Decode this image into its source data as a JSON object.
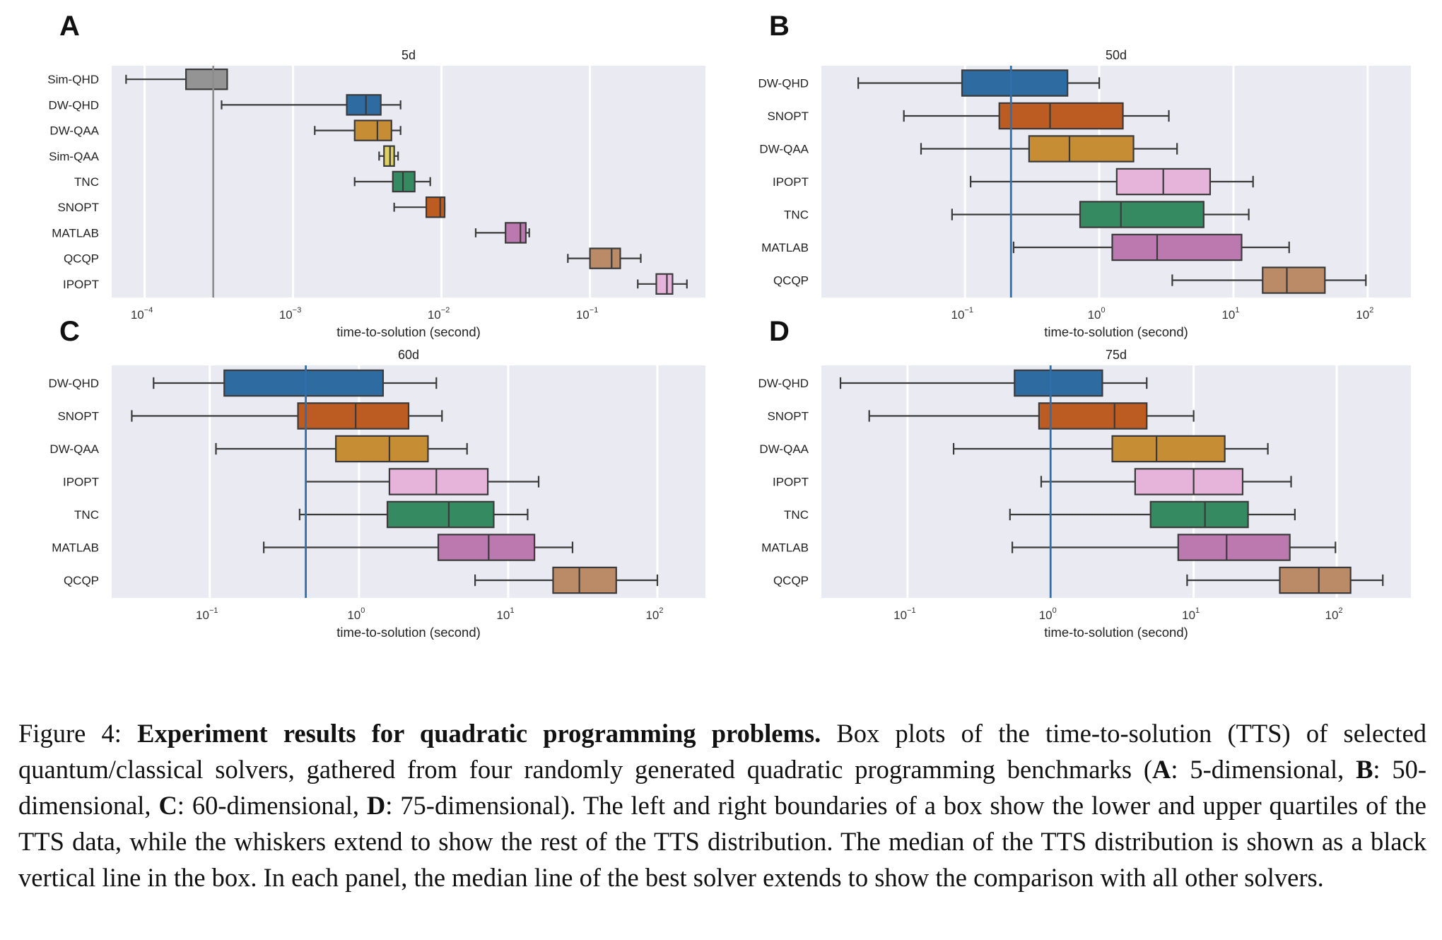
{
  "figure": {
    "caption_label": "Figure 4:",
    "caption_title": "Experiment results for quadratic programming problems.",
    "caption_parts": [
      " Box plots of the time-to-solution (TTS) of selected quantum/classical solvers, gathered from four randomly generated quadratic programming benchmarks (",
      "A",
      ": 5-dimensional, ",
      "B",
      ": 50-dimensional, ",
      "C",
      ": 60-dimensional, ",
      "D",
      ": 75-dimensional). The left and right boundaries of a box show the lower and upper quartiles of the TTS data, while the whiskers extend to show the rest of the TTS distribution. The median of the TTS distribution is shown as a black vertical line in the box. In each panel, the median line of the best solver extends to show the comparison with all other solvers."
    ]
  },
  "colors": {
    "Sim-QHD": "#949494",
    "DW-QHD": "#2d6ba1",
    "DW-QAA": "#c78d34",
    "Sim-QAA": "#dcd162",
    "TNC": "#358a62",
    "SNOPT": "#bd5c22",
    "MATLAB": "#bb79b0",
    "QCQP": "#bb8b67",
    "IPOPT": "#e6b4da",
    "background": "#eaeaf2",
    "best_line_A": "#8c8c8c",
    "best_line": "#2f6fab"
  },
  "chart_data": [
    {
      "type": "box",
      "panel": "A",
      "title": "5d",
      "xlabel": "time-to-solution (second)",
      "xscale": "log",
      "xlim": [
        6e-05,
        0.6
      ],
      "xticks": [
        {
          "value": 0.0001,
          "base": "10",
          "exp": "−4"
        },
        {
          "value": 0.001,
          "base": "10",
          "exp": "−3"
        },
        {
          "value": 0.01,
          "base": "10",
          "exp": "−2"
        },
        {
          "value": 0.1,
          "base": "10",
          "exp": "−1"
        }
      ],
      "best_median": 0.00029,
      "series": [
        {
          "name": "Sim-QHD",
          "whislo": 7.5e-05,
          "q1": 0.00019,
          "med": 0.00029,
          "q3": 0.00036,
          "whishi": 0.00036
        },
        {
          "name": "DW-QHD",
          "whislo": 0.00033,
          "q1": 0.0023,
          "med": 0.0031,
          "q3": 0.0039,
          "whishi": 0.0053
        },
        {
          "name": "DW-QAA",
          "whislo": 0.0014,
          "q1": 0.0026,
          "med": 0.0037,
          "q3": 0.0046,
          "whishi": 0.0053
        },
        {
          "name": "Sim-QAA",
          "whislo": 0.0038,
          "q1": 0.0041,
          "med": 0.0045,
          "q3": 0.0048,
          "whishi": 0.0051
        },
        {
          "name": "TNC",
          "whislo": 0.0026,
          "q1": 0.0047,
          "med": 0.0055,
          "q3": 0.0066,
          "whishi": 0.0084
        },
        {
          "name": "SNOPT",
          "whislo": 0.0048,
          "q1": 0.0079,
          "med": 0.0098,
          "q3": 0.0105,
          "whishi": 0.0105
        },
        {
          "name": "MATLAB",
          "whislo": 0.017,
          "q1": 0.027,
          "med": 0.034,
          "q3": 0.037,
          "whishi": 0.039
        },
        {
          "name": "QCQP",
          "whislo": 0.071,
          "q1": 0.1,
          "med": 0.14,
          "q3": 0.16,
          "whishi": 0.22
        },
        {
          "name": "IPOPT",
          "whislo": 0.21,
          "q1": 0.28,
          "med": 0.33,
          "q3": 0.36,
          "whishi": 0.45
        }
      ]
    },
    {
      "type": "box",
      "panel": "B",
      "title": "50d",
      "xlabel": "time-to-solution (second)",
      "xscale": "log",
      "xlim": [
        0.0085,
        210
      ],
      "xticks": [
        {
          "value": 0.1,
          "base": "10",
          "exp": "−1"
        },
        {
          "value": 1,
          "base": "10",
          "exp": "0"
        },
        {
          "value": 10,
          "base": "10",
          "exp": "1"
        },
        {
          "value": 100,
          "base": "10",
          "exp": "2"
        }
      ],
      "best_median": 0.22,
      "series": [
        {
          "name": "DW-QHD",
          "whislo": 0.016,
          "q1": 0.095,
          "med": 0.22,
          "q3": 0.58,
          "whishi": 1.0
        },
        {
          "name": "SNOPT",
          "whislo": 0.035,
          "q1": 0.18,
          "med": 0.43,
          "q3": 1.5,
          "whishi": 3.3
        },
        {
          "name": "DW-QAA",
          "whislo": 0.047,
          "q1": 0.3,
          "med": 0.6,
          "q3": 1.8,
          "whishi": 3.8
        },
        {
          "name": "IPOPT",
          "whislo": 0.11,
          "q1": 1.35,
          "med": 3.0,
          "q3": 6.7,
          "whishi": 14
        },
        {
          "name": "TNC",
          "whislo": 0.08,
          "q1": 0.72,
          "med": 1.45,
          "q3": 6.0,
          "whishi": 13
        },
        {
          "name": "MATLAB",
          "whislo": 0.23,
          "q1": 1.25,
          "med": 2.7,
          "q3": 11.5,
          "whishi": 26
        },
        {
          "name": "QCQP",
          "whislo": 3.5,
          "q1": 16.5,
          "med": 25,
          "q3": 48,
          "whishi": 97
        }
      ]
    },
    {
      "type": "box",
      "panel": "C",
      "title": "60d",
      "xlabel": "time-to-solution (second)",
      "xscale": "log",
      "xlim": [
        0.022,
        210
      ],
      "xticks": [
        {
          "value": 0.1,
          "base": "10",
          "exp": "−1"
        },
        {
          "value": 1,
          "base": "10",
          "exp": "0"
        },
        {
          "value": 10,
          "base": "10",
          "exp": "1"
        },
        {
          "value": 100,
          "base": "10",
          "exp": "2"
        }
      ],
      "best_median": 0.44,
      "series": [
        {
          "name": "DW-QHD",
          "whislo": 0.042,
          "q1": 0.125,
          "med": 0.44,
          "q3": 1.45,
          "whishi": 3.3
        },
        {
          "name": "SNOPT",
          "whislo": 0.03,
          "q1": 0.39,
          "med": 0.95,
          "q3": 2.15,
          "whishi": 3.6
        },
        {
          "name": "DW-QAA",
          "whislo": 0.11,
          "q1": 0.7,
          "med": 1.6,
          "q3": 2.9,
          "whishi": 5.3
        },
        {
          "name": "IPOPT",
          "whislo": 0.44,
          "q1": 1.6,
          "med": 3.3,
          "q3": 7.3,
          "whishi": 16
        },
        {
          "name": "TNC",
          "whislo": 0.4,
          "q1": 1.55,
          "med": 4.0,
          "q3": 8.0,
          "whishi": 13.5
        },
        {
          "name": "MATLAB",
          "whislo": 0.23,
          "q1": 3.4,
          "med": 7.4,
          "q3": 15,
          "whishi": 27
        },
        {
          "name": "QCQP",
          "whislo": 6.0,
          "q1": 20,
          "med": 30,
          "q3": 53,
          "whishi": 100
        }
      ]
    },
    {
      "type": "box",
      "panel": "D",
      "title": "75d",
      "xlabel": "time-to-solution (second)",
      "xscale": "log",
      "xlim": [
        0.025,
        330
      ],
      "xticks": [
        {
          "value": 0.1,
          "base": "10",
          "exp": "−1"
        },
        {
          "value": 1,
          "base": "10",
          "exp": "0"
        },
        {
          "value": 10,
          "base": "10",
          "exp": "1"
        },
        {
          "value": 100,
          "base": "10",
          "exp": "2"
        }
      ],
      "best_median": 1.0,
      "series": [
        {
          "name": "DW-QHD",
          "whislo": 0.034,
          "q1": 0.56,
          "med": 1.0,
          "q3": 2.3,
          "whishi": 4.7
        },
        {
          "name": "SNOPT",
          "whislo": 0.054,
          "q1": 0.83,
          "med": 2.8,
          "q3": 4.7,
          "whishi": 10
        },
        {
          "name": "DW-QAA",
          "whislo": 0.21,
          "q1": 2.7,
          "med": 5.5,
          "q3": 16.5,
          "whishi": 33
        },
        {
          "name": "IPOPT",
          "whislo": 0.86,
          "q1": 3.9,
          "med": 10,
          "q3": 22,
          "whishi": 48
        },
        {
          "name": "TNC",
          "whislo": 0.52,
          "q1": 5.0,
          "med": 12,
          "q3": 24,
          "whishi": 51
        },
        {
          "name": "MATLAB",
          "whislo": 0.54,
          "q1": 7.8,
          "med": 17,
          "q3": 47,
          "whishi": 98
        },
        {
          "name": "QCQP",
          "whislo": 9.0,
          "q1": 40,
          "med": 75,
          "q3": 125,
          "whishi": 210
        }
      ]
    }
  ]
}
